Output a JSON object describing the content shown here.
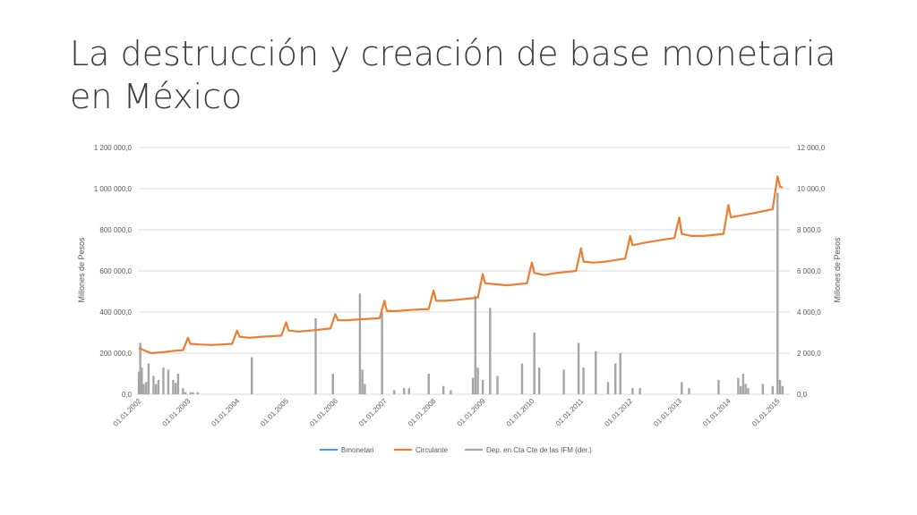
{
  "slide": {
    "title": "La destrucción y creación de base monetaria en México"
  },
  "colors": {
    "bmonetaria": "#5b9bd5",
    "circulante": "#ed7d31",
    "depositos": "#a5a5a5",
    "grid": "#d9d9d9",
    "text": "#595959"
  },
  "chart_data": {
    "type": "line",
    "title": "",
    "xlabel": "",
    "ylabel": "Millones de Pesos",
    "y2label": "Millones de Pesos",
    "ylim": [
      0,
      1200000
    ],
    "y2lim": [
      0,
      12000
    ],
    "y_ticks": [
      "0,0",
      "200 000,0",
      "400 000,0",
      "600 000,0",
      "800 000,0",
      "1 000 000,0",
      "1 200 000,0"
    ],
    "y2_ticks": [
      "0,0",
      "2 000,0",
      "4 000,0",
      "6 000,0",
      "8 000,0",
      "10 000,0",
      "12 000,0"
    ],
    "x_ticks": [
      "01.01.2002",
      "01.01.2003",
      "01.01.2004",
      "01.01.2005",
      "01.01.2006",
      "01.01.2007",
      "01.01.2008",
      "01.01.2009",
      "01.01.2010",
      "01.01.2011",
      "01.01.2012",
      "01.01.2013",
      "01.01.2014",
      "01.01.2015"
    ],
    "grid": true,
    "legend_position": "bottom",
    "series": [
      {
        "name": "Bmonetari",
        "type": "line",
        "axis": "left",
        "x": [],
        "values": []
      },
      {
        "name": "Circulante",
        "type": "line",
        "axis": "left",
        "x": [
          2002.0,
          2002.25,
          2002.5,
          2002.75,
          2002.9,
          2003.0,
          2003.05,
          2003.25,
          2003.5,
          2003.9,
          2004.0,
          2004.05,
          2004.25,
          2004.5,
          2004.9,
          2005.0,
          2005.05,
          2005.25,
          2005.5,
          2005.9,
          2006.0,
          2006.05,
          2006.25,
          2006.5,
          2006.9,
          2007.0,
          2007.05,
          2007.25,
          2007.5,
          2007.9,
          2008.0,
          2008.05,
          2008.25,
          2008.5,
          2008.9,
          2009.0,
          2009.05,
          2009.25,
          2009.5,
          2009.9,
          2010.0,
          2010.05,
          2010.25,
          2010.5,
          2010.9,
          2011.0,
          2011.05,
          2011.25,
          2011.5,
          2011.9,
          2012.0,
          2012.05,
          2012.25,
          2012.5,
          2012.9,
          2013.0,
          2013.05,
          2013.25,
          2013.5,
          2013.9,
          2014.0,
          2014.05,
          2014.25,
          2014.5,
          2014.9,
          2015.0,
          2015.05,
          2015.1
        ],
        "values": [
          225000,
          200000,
          205000,
          212000,
          215000,
          275000,
          245000,
          242000,
          240000,
          245000,
          310000,
          280000,
          275000,
          280000,
          285000,
          350000,
          310000,
          305000,
          310000,
          320000,
          390000,
          360000,
          360000,
          365000,
          370000,
          455000,
          405000,
          405000,
          410000,
          415000,
          505000,
          455000,
          455000,
          460000,
          470000,
          585000,
          540000,
          535000,
          530000,
          540000,
          640000,
          590000,
          580000,
          590000,
          600000,
          710000,
          645000,
          640000,
          645000,
          660000,
          770000,
          725000,
          735000,
          745000,
          760000,
          860000,
          780000,
          770000,
          770000,
          780000,
          920000,
          860000,
          870000,
          880000,
          900000,
          1060000,
          1010000,
          1005000
        ]
      },
      {
        "name": "Dep. en Cta Cte de las IFM (der.)",
        "type": "bar",
        "axis": "right",
        "x": [
          2002.0,
          2002.03,
          2002.06,
          2002.1,
          2002.15,
          2002.2,
          2002.3,
          2002.35,
          2002.4,
          2002.5,
          2002.6,
          2002.7,
          2002.75,
          2002.8,
          2002.9,
          2002.95,
          2003.05,
          2003.1,
          2003.2,
          2004.3,
          2005.6,
          2005.95,
          2006.5,
          2006.55,
          2006.6,
          2006.95,
          2007.2,
          2007.4,
          2007.5,
          2007.9,
          2008.2,
          2008.35,
          2008.8,
          2008.85,
          2008.9,
          2009.0,
          2009.15,
          2009.3,
          2009.8,
          2010.05,
          2010.15,
          2010.65,
          2010.95,
          2011.05,
          2011.3,
          2011.55,
          2011.7,
          2011.8,
          2012.05,
          2012.2,
          2013.05,
          2013.2,
          2013.8,
          2014.2,
          2014.25,
          2014.3,
          2014.35,
          2014.4,
          2014.7,
          2014.9,
          2015.0,
          2015.05,
          2015.1
        ],
        "values": [
          1100,
          2500,
          1300,
          500,
          600,
          1500,
          900,
          500,
          700,
          1300,
          1200,
          700,
          550,
          1000,
          300,
          100,
          100,
          100,
          100,
          1800,
          3700,
          1000,
          4900,
          1200,
          500,
          4000,
          200,
          300,
          300,
          1000,
          400,
          200,
          800,
          4800,
          1300,
          700,
          4200,
          900,
          1500,
          3000,
          1300,
          1200,
          2500,
          1300,
          2100,
          600,
          1500,
          2000,
          300,
          300,
          600,
          300,
          700,
          800,
          400,
          1000,
          500,
          300,
          500,
          400,
          9800,
          700,
          400
        ]
      }
    ]
  }
}
